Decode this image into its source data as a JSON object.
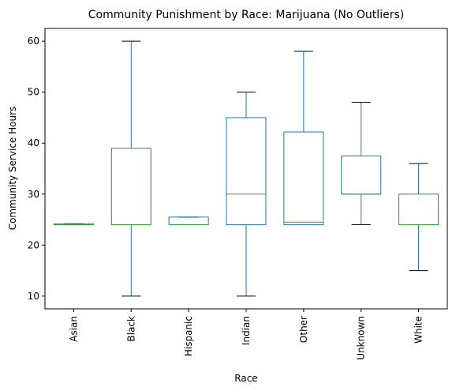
{
  "chart_data": {
    "type": "box",
    "title": "Community Punishment by Race: Marijuana (No Outliers)",
    "xlabel": "Race",
    "ylabel": "Community Service Hours",
    "ylim": [
      7.5,
      62.5
    ],
    "yticks": [
      10,
      20,
      30,
      40,
      50,
      60
    ],
    "categories": [
      "Asian",
      "Black",
      "Hispanic",
      "Indian",
      "Other",
      "Unknown",
      "White"
    ],
    "boxes": [
      {
        "category": "Asian",
        "whisker_low": 24,
        "q1": 24,
        "median": 24,
        "q3": 24.2,
        "whisker_high": 24.2
      },
      {
        "category": "Black",
        "whisker_low": 10,
        "q1": 24,
        "median": 24,
        "q3": 39,
        "whisker_high": 60
      },
      {
        "category": "Hispanic",
        "whisker_low": 24,
        "q1": 24,
        "median": 24,
        "q3": 25.5,
        "whisker_high": 25.5
      },
      {
        "category": "Indian",
        "whisker_low": 10,
        "q1": 24,
        "median": 30,
        "q3": 45,
        "whisker_high": 50
      },
      {
        "category": "Other",
        "whisker_low": 24,
        "q1": 24,
        "median": 24.5,
        "q3": 42.2,
        "whisker_high": 58
      },
      {
        "category": "Unknown",
        "whisker_low": 24,
        "q1": 30,
        "median": 30,
        "q3": 37.5,
        "whisker_high": 48
      },
      {
        "category": "White",
        "whisker_low": 15,
        "q1": 24,
        "median": 24,
        "q3": 30,
        "whisker_high": 36
      }
    ],
    "colors": {
      "box": "#1f77b4",
      "median": "#2ca02c",
      "cap": "#000000",
      "axis": "#000000"
    },
    "grid": false,
    "legend": "none"
  }
}
